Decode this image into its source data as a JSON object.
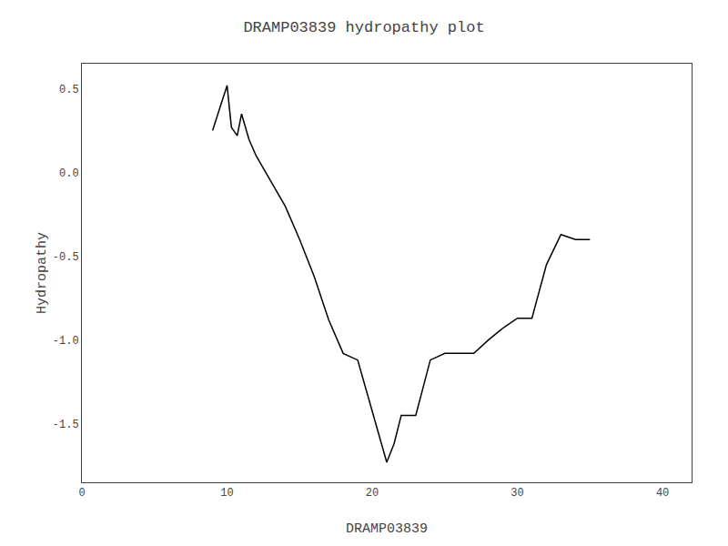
{
  "chart_data": {
    "type": "line",
    "title": "DRAMP03839 hydropathy plot",
    "xlabel": "DRAMP03839",
    "ylabel": "Hydropathy",
    "x": [
      9.0,
      9.5,
      10.0,
      10.3,
      10.7,
      11.0,
      11.5,
      12.0,
      13.0,
      14.0,
      15.0,
      16.0,
      17.0,
      18.0,
      19.0,
      20.0,
      21.0,
      21.5,
      22.0,
      22.5,
      23.0,
      24.0,
      25.0,
      26.0,
      27.0,
      28.0,
      29.0,
      30.0,
      31.0,
      32.0,
      33.0,
      34.0,
      35.0
    ],
    "values": [
      0.25,
      0.38,
      0.52,
      0.27,
      0.22,
      0.35,
      0.2,
      0.1,
      -0.05,
      -0.2,
      -0.4,
      -0.62,
      -0.88,
      -1.08,
      -1.12,
      -1.42,
      -1.73,
      -1.62,
      -1.45,
      -1.45,
      -1.45,
      -1.12,
      -1.08,
      -1.08,
      -1.08,
      -1.0,
      -0.93,
      -0.87,
      -0.87,
      -0.55,
      -0.37,
      -0.4,
      -0.4
    ],
    "color": "#000000",
    "xlim": [
      0,
      42
    ],
    "ylim": [
      -1.85,
      0.65
    ],
    "xticks": [
      0,
      10,
      20,
      30,
      40
    ],
    "yticks": [
      0.5,
      {
        "value": 0.0,
        "label": "0.0"
      },
      -0.5,
      {
        "value": -1.0,
        "label": "-1.0"
      },
      -1.5
    ],
    "grid": false
  }
}
